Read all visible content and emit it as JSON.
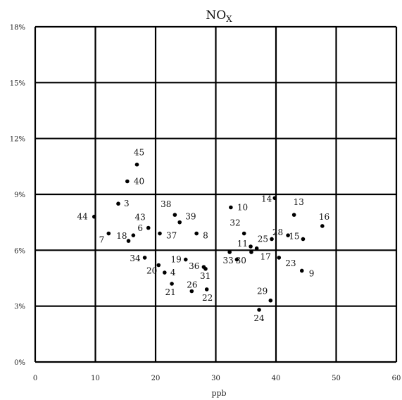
{
  "chart_data": {
    "type": "scatter",
    "title": "NO",
    "title_subscript": "X",
    "xlabel": "ppb",
    "ylabel": "",
    "xlim": [
      0,
      60
    ],
    "ylim": [
      0,
      18
    ],
    "x_ticks": [
      0,
      10,
      20,
      30,
      40,
      50,
      60
    ],
    "y_ticks": [
      0,
      3,
      6,
      9,
      12,
      15,
      18
    ],
    "y_tick_suffix": "%",
    "grid": true,
    "marker_color": "#000000",
    "points": [
      {
        "label": "3",
        "x": 13.8,
        "y": 8.5
      },
      {
        "label": "4",
        "x": 21.5,
        "y": 4.8
      },
      {
        "label": "6",
        "x": 16.3,
        "y": 6.8
      },
      {
        "label": "7",
        "x": 12.2,
        "y": 6.9
      },
      {
        "label": "8",
        "x": 26.8,
        "y": 6.9
      },
      {
        "label": "9",
        "x": 44.3,
        "y": 4.9
      },
      {
        "label": "10",
        "x": 32.5,
        "y": 8.3
      },
      {
        "label": "11",
        "x": 35.8,
        "y": 6.2
      },
      {
        "label": "13",
        "x": 43.0,
        "y": 7.9
      },
      {
        "label": "14",
        "x": 39.8,
        "y": 8.8
      },
      {
        "label": "15",
        "x": 44.5,
        "y": 6.6
      },
      {
        "label": "16",
        "x": 47.7,
        "y": 7.3
      },
      {
        "label": "17",
        "x": 36.8,
        "y": 6.1
      },
      {
        "label": "18",
        "x": 15.5,
        "y": 6.5
      },
      {
        "label": "19",
        "x": 25.0,
        "y": 5.5
      },
      {
        "label": "20",
        "x": 20.5,
        "y": 5.2
      },
      {
        "label": "21",
        "x": 22.7,
        "y": 4.2
      },
      {
        "label": "22",
        "x": 28.5,
        "y": 3.9
      },
      {
        "label": "23",
        "x": 40.5,
        "y": 5.6
      },
      {
        "label": "24",
        "x": 37.2,
        "y": 2.8
      },
      {
        "label": "25",
        "x": 39.3,
        "y": 6.6
      },
      {
        "label": "26",
        "x": 26.0,
        "y": 3.8
      },
      {
        "label": "28",
        "x": 42.0,
        "y": 6.8
      },
      {
        "label": "29",
        "x": 39.1,
        "y": 3.3
      },
      {
        "label": "30",
        "x": 35.9,
        "y": 5.9
      },
      {
        "label": "31",
        "x": 28.3,
        "y": 5.0
      },
      {
        "label": "32",
        "x": 34.7,
        "y": 6.9
      },
      {
        "label": "33",
        "x": 32.3,
        "y": 5.9
      },
      {
        "label": "34",
        "x": 18.2,
        "y": 5.6
      },
      {
        "label": "36",
        "x": 28.0,
        "y": 5.1
      },
      {
        "label": "37",
        "x": 20.7,
        "y": 6.9
      },
      {
        "label": "38",
        "x": 23.2,
        "y": 7.9
      },
      {
        "label": "39",
        "x": 24.0,
        "y": 7.5
      },
      {
        "label": "40",
        "x": 15.3,
        "y": 9.7
      },
      {
        "label": "43",
        "x": 18.8,
        "y": 7.2
      },
      {
        "label": "44",
        "x": 9.8,
        "y": 7.8
      },
      {
        "label": "45",
        "x": 16.9,
        "y": 10.6
      },
      {
        "label": "",
        "x": 33.5,
        "y": 5.5
      }
    ]
  }
}
